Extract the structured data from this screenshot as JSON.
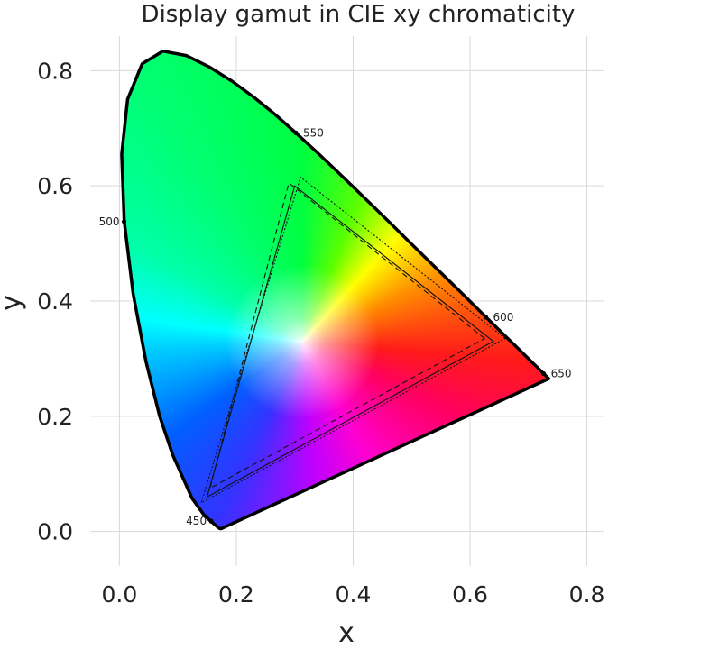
{
  "chart_data": {
    "type": "scatter",
    "title": "Display gamut in CIE xy chromaticity",
    "xlabel": "x",
    "ylabel": "y",
    "xlim": [
      -0.05,
      0.83
    ],
    "ylim": [
      -0.06,
      0.86
    ],
    "grid": true,
    "x_ticks": [
      {
        "value": 0.0,
        "label": "0.0"
      },
      {
        "value": 0.2,
        "label": "0.2"
      },
      {
        "value": 0.4,
        "label": "0.4"
      },
      {
        "value": 0.6,
        "label": "0.6"
      },
      {
        "value": 0.8,
        "label": "0.8"
      }
    ],
    "y_ticks": [
      {
        "value": 0.0,
        "label": "0.0"
      },
      {
        "value": 0.2,
        "label": "0.2"
      },
      {
        "value": 0.4,
        "label": "0.4"
      },
      {
        "value": 0.6,
        "label": "0.6"
      },
      {
        "value": 0.8,
        "label": "0.8"
      }
    ],
    "spectral_locus": [
      [
        0.1741,
        0.005
      ],
      [
        0.1714,
        0.0051
      ],
      [
        0.1689,
        0.0069
      ],
      [
        0.1644,
        0.0109
      ],
      [
        0.1566,
        0.0177
      ],
      [
        0.144,
        0.0297
      ],
      [
        0.1241,
        0.0578
      ],
      [
        0.0913,
        0.1327
      ],
      [
        0.0687,
        0.2007
      ],
      [
        0.0454,
        0.295
      ],
      [
        0.0235,
        0.4127
      ],
      [
        0.0082,
        0.5384
      ],
      [
        0.0039,
        0.6548
      ],
      [
        0.0139,
        0.7502
      ],
      [
        0.0389,
        0.812
      ],
      [
        0.0743,
        0.8338
      ],
      [
        0.1142,
        0.8262
      ],
      [
        0.1547,
        0.8059
      ],
      [
        0.1929,
        0.7816
      ],
      [
        0.2296,
        0.7543
      ],
      [
        0.2658,
        0.7243
      ],
      [
        0.3016,
        0.6923
      ],
      [
        0.3373,
        0.6589
      ],
      [
        0.3731,
        0.6245
      ],
      [
        0.4087,
        0.5896
      ],
      [
        0.4441,
        0.5547
      ],
      [
        0.4788,
        0.5202
      ],
      [
        0.5125,
        0.4866
      ],
      [
        0.5448,
        0.4544
      ],
      [
        0.5752,
        0.4242
      ],
      [
        0.6029,
        0.3965
      ],
      [
        0.627,
        0.3725
      ],
      [
        0.6482,
        0.3514
      ],
      [
        0.6658,
        0.334
      ],
      [
        0.6801,
        0.3197
      ],
      [
        0.6915,
        0.3083
      ],
      [
        0.7006,
        0.2993
      ],
      [
        0.7079,
        0.292
      ],
      [
        0.714,
        0.2859
      ],
      [
        0.719,
        0.2809
      ],
      [
        0.723,
        0.277
      ],
      [
        0.726,
        0.274
      ],
      [
        0.7283,
        0.2717
      ],
      [
        0.73,
        0.27
      ],
      [
        0.732,
        0.268
      ],
      [
        0.7347,
        0.2653
      ]
    ],
    "wavelength_markers": [
      {
        "label": "450",
        "x": 0.157,
        "y": 0.018,
        "anchor": "left"
      },
      {
        "label": "500",
        "x": 0.008,
        "y": 0.538,
        "anchor": "left"
      },
      {
        "label": "550",
        "x": 0.302,
        "y": 0.692,
        "anchor": "right"
      },
      {
        "label": "600",
        "x": 0.627,
        "y": 0.372,
        "anchor": "right"
      },
      {
        "label": "650",
        "x": 0.726,
        "y": 0.274,
        "anchor": "right"
      }
    ],
    "white_point": [
      0.3127,
      0.329
    ],
    "gamuts": [
      {
        "style": "solid",
        "points": [
          [
            0.64,
            0.33
          ],
          [
            0.3,
            0.6
          ],
          [
            0.15,
            0.06
          ]
        ]
      },
      {
        "style": "dotted",
        "points": [
          [
            0.66,
            0.335
          ],
          [
            0.31,
            0.615
          ],
          [
            0.14,
            0.05
          ]
        ]
      },
      {
        "style": "dashed",
        "points": [
          [
            0.625,
            0.335
          ],
          [
            0.29,
            0.605
          ],
          [
            0.155,
            0.075
          ]
        ]
      }
    ]
  }
}
